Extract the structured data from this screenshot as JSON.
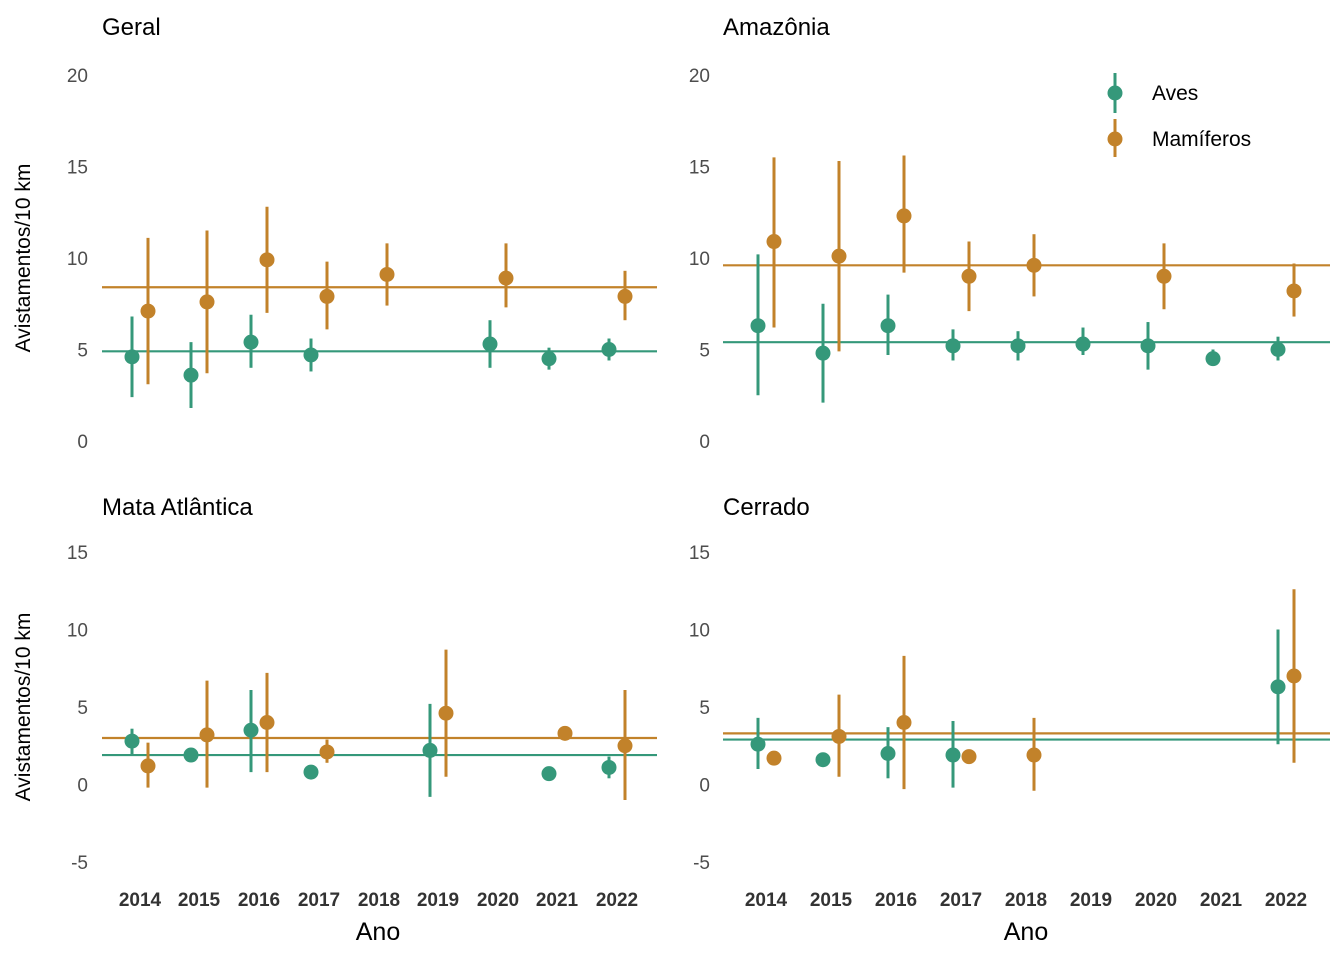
{
  "colors": {
    "Aves": "#35987a",
    "Mamíferos": "#c2822a"
  },
  "legend": {
    "items": [
      "Aves",
      "Mamíferos"
    ]
  },
  "chart_data": [
    {
      "type": "scatter",
      "title": "Geral",
      "ylabel": "Avistamentos/10 km",
      "xlabel": "",
      "ylim": [
        0,
        20
      ],
      "yticks": [
        0,
        5,
        10,
        15,
        20
      ],
      "categories": [
        "2014",
        "2015",
        "2016",
        "2017",
        "2018",
        "2019",
        "2020",
        "2021",
        "2022"
      ],
      "show_x_ticks": false,
      "series": [
        {
          "name": "Aves",
          "hline": 4.9,
          "points": [
            {
              "x": "2014",
              "y": 4.6,
              "lo": 2.4,
              "hi": 6.8
            },
            {
              "x": "2015",
              "y": 3.6,
              "lo": 1.8,
              "hi": 5.4
            },
            {
              "x": "2016",
              "y": 5.4,
              "lo": 4.0,
              "hi": 6.9
            },
            {
              "x": "2017",
              "y": 4.7,
              "lo": 3.8,
              "hi": 5.6
            },
            {
              "x": "2020",
              "y": 5.3,
              "lo": 4.0,
              "hi": 6.6
            },
            {
              "x": "2021",
              "y": 4.5,
              "lo": 3.9,
              "hi": 5.1
            },
            {
              "x": "2022",
              "y": 5.0,
              "lo": 4.4,
              "hi": 5.6
            }
          ]
        },
        {
          "name": "Mamíferos",
          "hline": 8.4,
          "points": [
            {
              "x": "2014",
              "y": 7.1,
              "lo": 3.1,
              "hi": 11.1
            },
            {
              "x": "2015",
              "y": 7.6,
              "lo": 3.7,
              "hi": 11.5
            },
            {
              "x": "2016",
              "y": 9.9,
              "lo": 7.0,
              "hi": 12.8
            },
            {
              "x": "2017",
              "y": 7.9,
              "lo": 6.1,
              "hi": 9.8
            },
            {
              "x": "2018",
              "y": 9.1,
              "lo": 7.4,
              "hi": 10.8
            },
            {
              "x": "2020",
              "y": 8.9,
              "lo": 7.3,
              "hi": 10.8
            },
            {
              "x": "2022",
              "y": 7.9,
              "lo": 6.6,
              "hi": 9.3
            }
          ]
        }
      ]
    },
    {
      "type": "scatter",
      "title": "Amazônia",
      "ylabel": "",
      "xlabel": "",
      "ylim": [
        0,
        20
      ],
      "yticks": [
        0,
        5,
        10,
        15,
        20
      ],
      "categories": [
        "2014",
        "2015",
        "2016",
        "2017",
        "2018",
        "2019",
        "2020",
        "2021",
        "2022"
      ],
      "show_x_ticks": false,
      "legend_position": "top-right",
      "series": [
        {
          "name": "Aves",
          "hline": 5.4,
          "points": [
            {
              "x": "2014",
              "y": 6.3,
              "lo": 2.5,
              "hi": 10.2
            },
            {
              "x": "2015",
              "y": 4.8,
              "lo": 2.1,
              "hi": 7.5
            },
            {
              "x": "2016",
              "y": 6.3,
              "lo": 4.7,
              "hi": 8.0
            },
            {
              "x": "2017",
              "y": 5.2,
              "lo": 4.4,
              "hi": 6.1
            },
            {
              "x": "2018",
              "y": 5.2,
              "lo": 4.4,
              "hi": 6.0
            },
            {
              "x": "2019",
              "y": 5.3,
              "lo": 4.7,
              "hi": 6.2
            },
            {
              "x": "2020",
              "y": 5.2,
              "lo": 3.9,
              "hi": 6.5
            },
            {
              "x": "2021",
              "y": 4.5,
              "lo": 4.1,
              "hi": 5.0
            },
            {
              "x": "2022",
              "y": 5.0,
              "lo": 4.4,
              "hi": 5.7
            }
          ]
        },
        {
          "name": "Mamíferos",
          "hline": 9.6,
          "points": [
            {
              "x": "2014",
              "y": 10.9,
              "lo": 6.2,
              "hi": 15.5
            },
            {
              "x": "2015",
              "y": 10.1,
              "lo": 4.9,
              "hi": 15.3
            },
            {
              "x": "2016",
              "y": 12.3,
              "lo": 9.2,
              "hi": 15.6
            },
            {
              "x": "2017",
              "y": 9.0,
              "lo": 7.1,
              "hi": 10.9
            },
            {
              "x": "2018",
              "y": 9.6,
              "lo": 7.9,
              "hi": 11.3
            },
            {
              "x": "2020",
              "y": 9.0,
              "lo": 7.2,
              "hi": 10.8
            },
            {
              "x": "2022",
              "y": 8.2,
              "lo": 6.8,
              "hi": 9.7
            }
          ]
        }
      ]
    },
    {
      "type": "scatter",
      "title": "Mata Atlântica",
      "ylabel": "Avistamentos/10 km",
      "xlabel": "Ano",
      "ylim": [
        -5,
        15
      ],
      "yticks": [
        -5,
        0,
        5,
        10,
        15
      ],
      "categories": [
        "2014",
        "2015",
        "2016",
        "2017",
        "2018",
        "2019",
        "2020",
        "2021",
        "2022"
      ],
      "show_x_ticks": true,
      "series": [
        {
          "name": "Aves",
          "hline": 1.9,
          "points": [
            {
              "x": "2014",
              "y": 2.8,
              "lo": 1.9,
              "hi": 3.6
            },
            {
              "x": "2015",
              "y": 1.9,
              "lo": 1.5,
              "hi": 2.3
            },
            {
              "x": "2016",
              "y": 3.5,
              "lo": 0.8,
              "hi": 6.1
            },
            {
              "x": "2017",
              "y": 0.8,
              "lo": 0.5,
              "hi": 1.1
            },
            {
              "x": "2019",
              "y": 2.2,
              "lo": -0.8,
              "hi": 5.2
            },
            {
              "x": "2021",
              "y": 0.7,
              "lo": 0.4,
              "hi": 1.0
            },
            {
              "x": "2022",
              "y": 1.1,
              "lo": 0.4,
              "hi": 1.8
            }
          ]
        },
        {
          "name": "Mamíferos",
          "hline": 3.0,
          "points": [
            {
              "x": "2014",
              "y": 1.2,
              "lo": -0.2,
              "hi": 2.7
            },
            {
              "x": "2015",
              "y": 3.2,
              "lo": -0.2,
              "hi": 6.7
            },
            {
              "x": "2016",
              "y": 4.0,
              "lo": 0.8,
              "hi": 7.2
            },
            {
              "x": "2017",
              "y": 2.1,
              "lo": 1.4,
              "hi": 2.9
            },
            {
              "x": "2019",
              "y": 4.6,
              "lo": 0.5,
              "hi": 8.7
            },
            {
              "x": "2021",
              "y": 3.3,
              "lo": 2.9,
              "hi": 3.6
            },
            {
              "x": "2022",
              "y": 2.5,
              "lo": -1.0,
              "hi": 6.1
            }
          ]
        }
      ]
    },
    {
      "type": "scatter",
      "title": "Cerrado",
      "ylabel": "",
      "xlabel": "Ano",
      "ylim": [
        -5,
        15
      ],
      "yticks": [
        -5,
        0,
        5,
        10,
        15
      ],
      "categories": [
        "2014",
        "2015",
        "2016",
        "2017",
        "2018",
        "2019",
        "2020",
        "2021",
        "2022"
      ],
      "show_x_ticks": true,
      "series": [
        {
          "name": "Aves",
          "hline": 2.9,
          "points": [
            {
              "x": "2014",
              "y": 2.6,
              "lo": 1.0,
              "hi": 4.3
            },
            {
              "x": "2015",
              "y": 1.6,
              "lo": 1.2,
              "hi": 2.0
            },
            {
              "x": "2016",
              "y": 2.0,
              "lo": 0.4,
              "hi": 3.7
            },
            {
              "x": "2017",
              "y": 1.9,
              "lo": -0.2,
              "hi": 4.1
            },
            {
              "x": "2022",
              "y": 6.3,
              "lo": 2.6,
              "hi": 10.0
            }
          ]
        },
        {
          "name": "Mamíferos",
          "hline": 3.3,
          "points": [
            {
              "x": "2014",
              "y": 1.7,
              "lo": 1.3,
              "hi": 2.1
            },
            {
              "x": "2015",
              "y": 3.1,
              "lo": 0.5,
              "hi": 5.8
            },
            {
              "x": "2016",
              "y": 4.0,
              "lo": -0.3,
              "hi": 8.3
            },
            {
              "x": "2017",
              "y": 1.8,
              "lo": 1.4,
              "hi": 2.1
            },
            {
              "x": "2018",
              "y": 1.9,
              "lo": -0.4,
              "hi": 4.3
            },
            {
              "x": "2022",
              "y": 7.0,
              "lo": 1.4,
              "hi": 12.6
            }
          ]
        }
      ]
    }
  ]
}
